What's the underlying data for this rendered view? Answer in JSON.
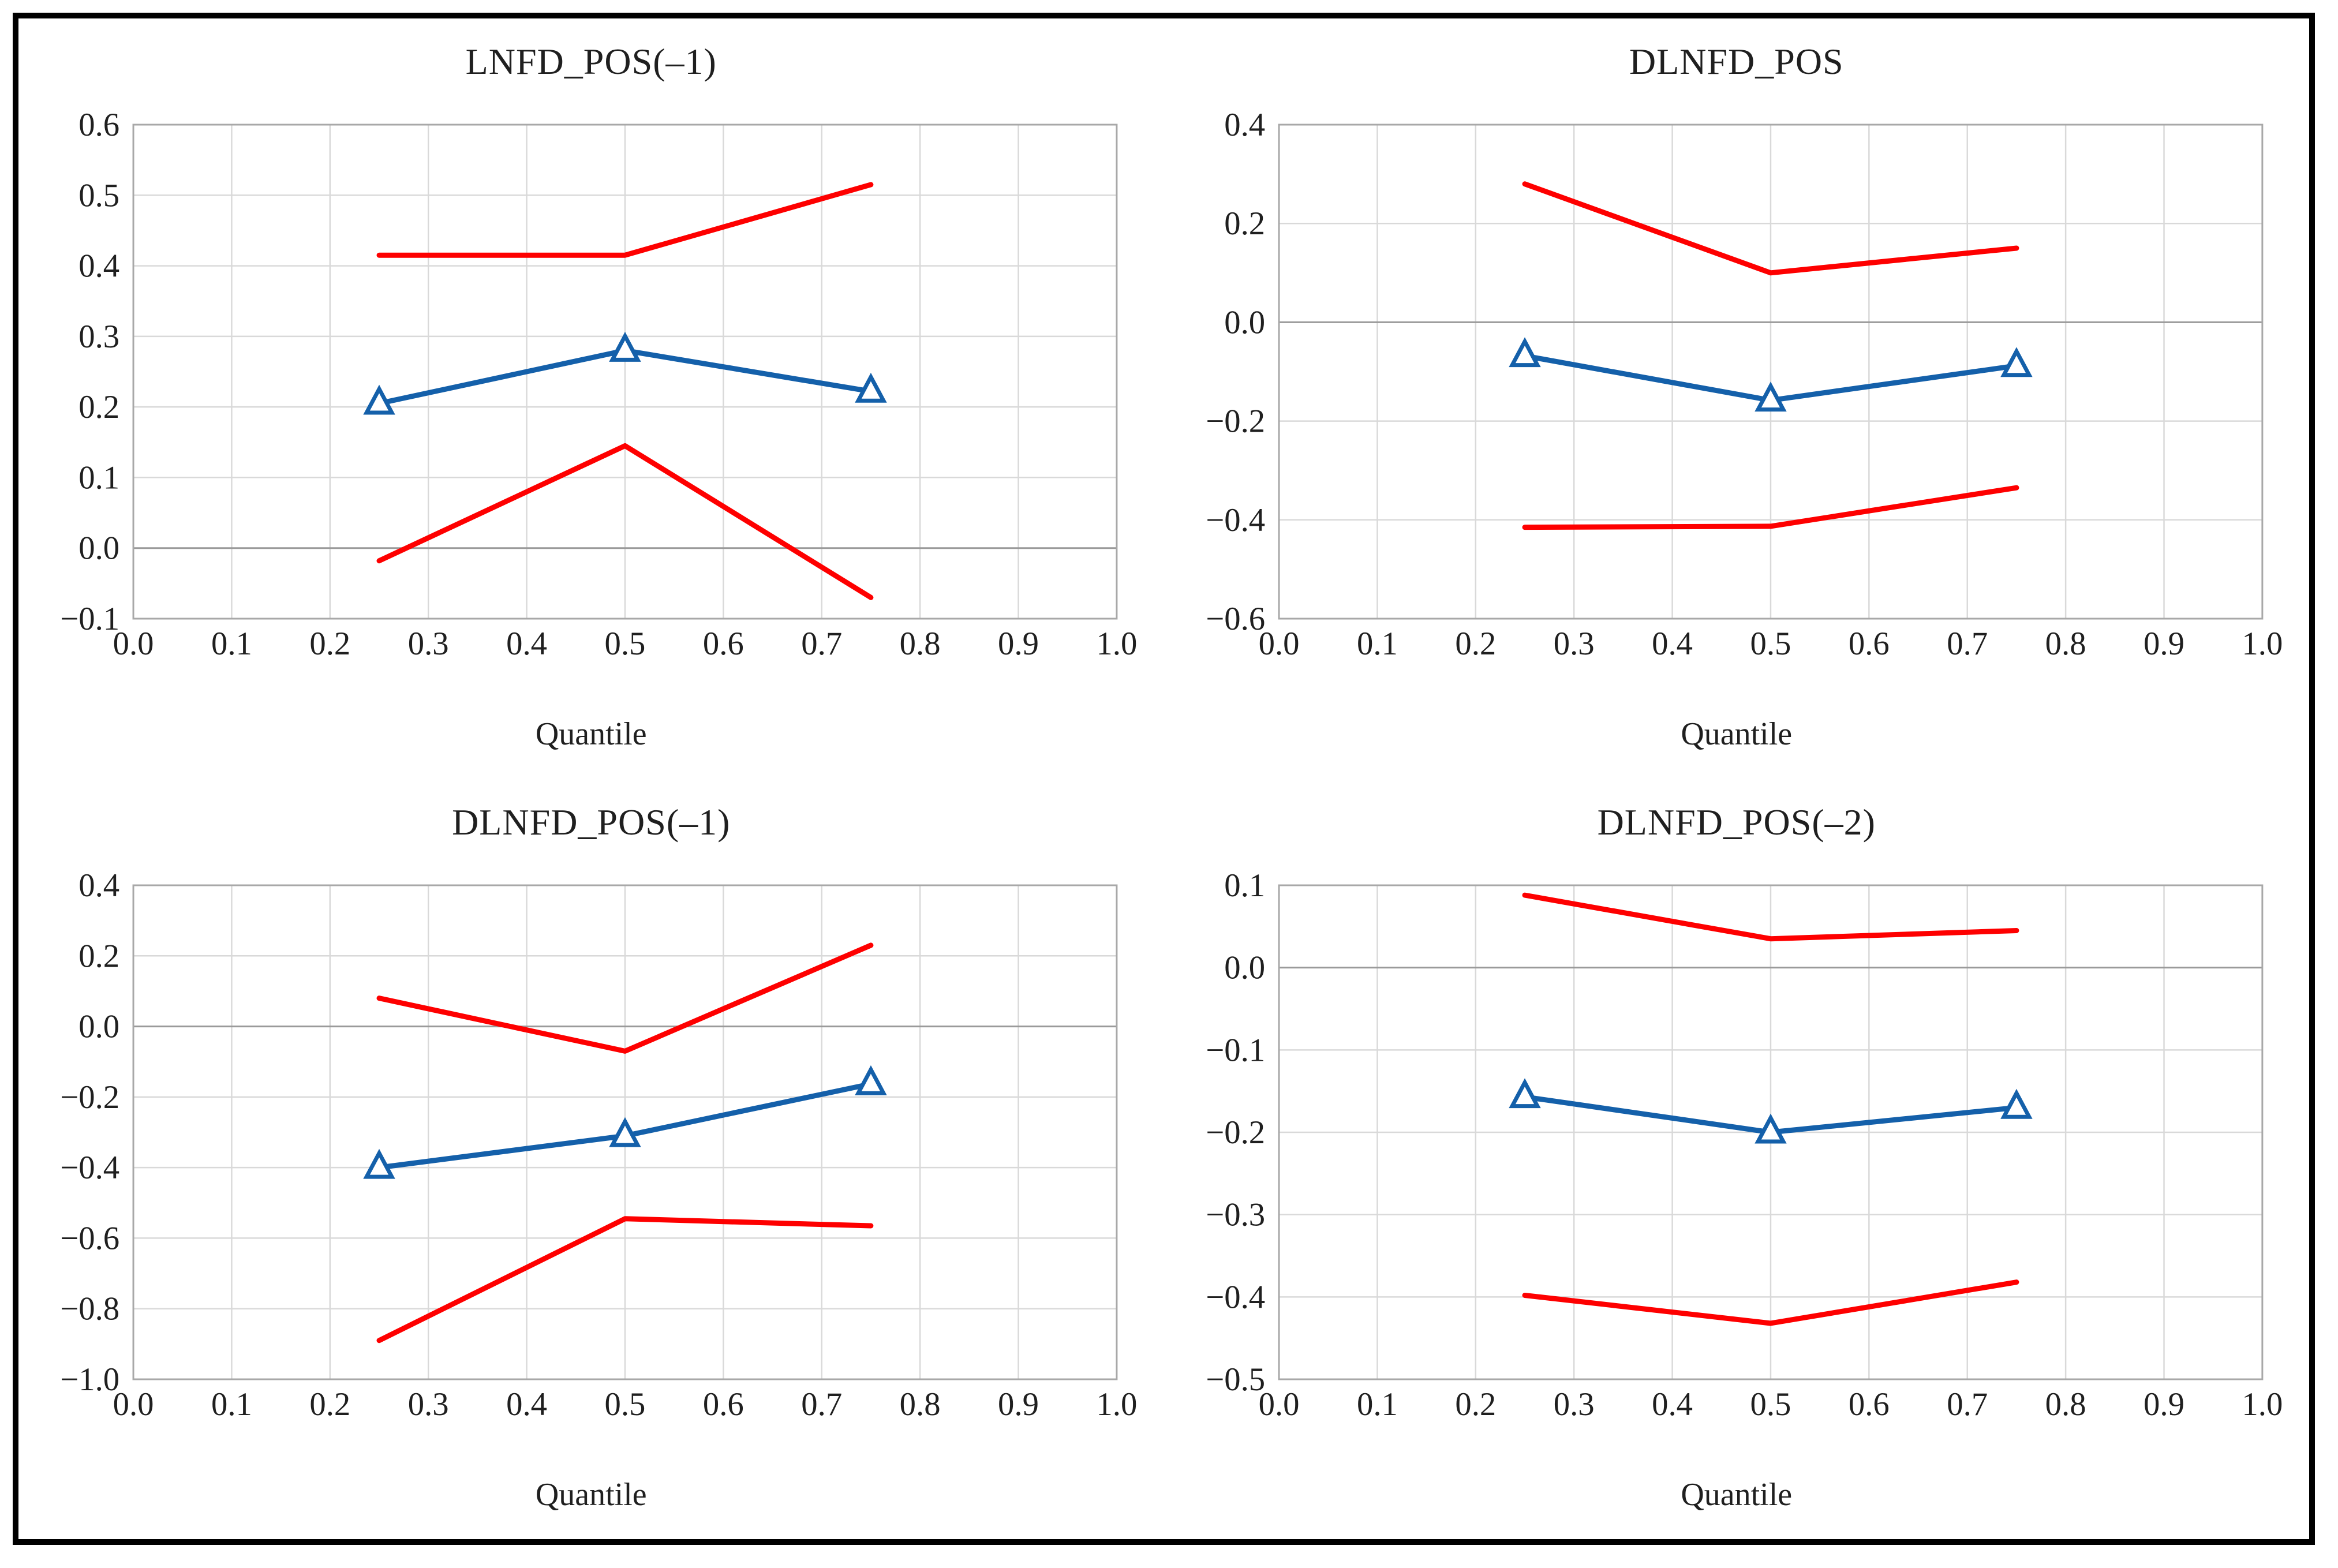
{
  "figure": {
    "background": "#ffffff",
    "border_color": "#000000",
    "grid_color": "#d9d9d9",
    "zero_line_color": "#9a9a9a",
    "frame_color": "#a8a8a8",
    "text_color": "#1f1f1f",
    "estimate_color": "#1460aa",
    "band_color": "#fe0000",
    "marker": "triangle-up-open"
  },
  "chart_data": [
    {
      "type": "line",
      "title": "LNFD_POS(–1)",
      "xlabel": "Quantile",
      "legend": "none",
      "grid": true,
      "zero_line": true,
      "x": [
        0.25,
        0.5,
        0.75
      ],
      "xlim": [
        0.0,
        1.0
      ],
      "ylim": [
        -0.1,
        0.6
      ],
      "xticks": [
        0.0,
        0.1,
        0.2,
        0.3,
        0.4,
        0.5,
        0.6,
        0.7,
        0.8,
        0.9,
        1.0
      ],
      "xtick_labels": [
        "0.0",
        "0.1",
        "0.2",
        "0.3",
        "0.4",
        "0.5",
        "0.6",
        "0.7",
        "0.8",
        "0.9",
        "1.0"
      ],
      "yticks": [
        0.6,
        0.5,
        0.4,
        0.3,
        0.2,
        0.1,
        0.0,
        -0.1
      ],
      "ytick_labels": [
        "0.6",
        "0.5",
        "0.4",
        "0.3",
        "0.2",
        "0.1",
        "0.0",
        "−0.1"
      ],
      "series": [
        {
          "name": "upper-ci",
          "role": "band",
          "values": [
            0.415,
            0.415,
            0.515
          ]
        },
        {
          "name": "lower-ci",
          "role": "band",
          "values": [
            -0.018,
            0.145,
            -0.07
          ]
        },
        {
          "name": "estimate",
          "role": "estimate",
          "values": [
            0.205,
            0.28,
            0.222
          ]
        }
      ]
    },
    {
      "type": "line",
      "title": "DLNFD_POS",
      "xlabel": "Quantile",
      "legend": "none",
      "grid": true,
      "zero_line": true,
      "x": [
        0.25,
        0.5,
        0.75
      ],
      "xlim": [
        0.0,
        1.0
      ],
      "ylim": [
        -0.6,
        0.4
      ],
      "xticks": [
        0.0,
        0.1,
        0.2,
        0.3,
        0.4,
        0.5,
        0.6,
        0.7,
        0.8,
        0.9,
        1.0
      ],
      "xtick_labels": [
        "0.0",
        "0.1",
        "0.2",
        "0.3",
        "0.4",
        "0.5",
        "0.6",
        "0.7",
        "0.8",
        "0.9",
        "1.0"
      ],
      "yticks": [
        0.4,
        0.2,
        0.0,
        -0.2,
        -0.4,
        -0.6
      ],
      "ytick_labels": [
        "0.4",
        "0.2",
        "0.0",
        "−0.2",
        "−0.4",
        "−0.6"
      ],
      "series": [
        {
          "name": "upper-ci",
          "role": "band",
          "values": [
            0.28,
            0.1,
            0.15
          ]
        },
        {
          "name": "lower-ci",
          "role": "band",
          "values": [
            -0.415,
            -0.413,
            -0.335
          ]
        },
        {
          "name": "estimate",
          "role": "estimate",
          "values": [
            -0.068,
            -0.158,
            -0.088
          ]
        }
      ]
    },
    {
      "type": "line",
      "title": "DLNFD_POS(–1)",
      "xlabel": "Quantile",
      "legend": "none",
      "grid": true,
      "zero_line": true,
      "x": [
        0.25,
        0.5,
        0.75
      ],
      "xlim": [
        0.0,
        1.0
      ],
      "ylim": [
        -1.0,
        0.4
      ],
      "xticks": [
        0.0,
        0.1,
        0.2,
        0.3,
        0.4,
        0.5,
        0.6,
        0.7,
        0.8,
        0.9,
        1.0
      ],
      "xtick_labels": [
        "0.0",
        "0.1",
        "0.2",
        "0.3",
        "0.4",
        "0.5",
        "0.6",
        "0.7",
        "0.8",
        "0.9",
        "1.0"
      ],
      "yticks": [
        0.4,
        0.2,
        0.0,
        -0.2,
        -0.4,
        -0.6,
        -0.8,
        -1.0
      ],
      "ytick_labels": [
        "0.4",
        "0.2",
        "0.0",
        "−0.2",
        "−0.4",
        "−0.6",
        "−0.8",
        "−1.0"
      ],
      "series": [
        {
          "name": "upper-ci",
          "role": "band",
          "values": [
            0.08,
            -0.07,
            0.23
          ]
        },
        {
          "name": "lower-ci",
          "role": "band",
          "values": [
            -0.89,
            -0.545,
            -0.565
          ]
        },
        {
          "name": "estimate",
          "role": "estimate",
          "values": [
            -0.4,
            -0.31,
            -0.163
          ]
        }
      ]
    },
    {
      "type": "line",
      "title": "DLNFD_POS(–2)",
      "xlabel": "Quantile",
      "legend": "none",
      "grid": true,
      "zero_line": true,
      "x": [
        0.25,
        0.5,
        0.75
      ],
      "xlim": [
        0.0,
        1.0
      ],
      "ylim": [
        -0.5,
        0.1
      ],
      "xticks": [
        0.0,
        0.1,
        0.2,
        0.3,
        0.4,
        0.5,
        0.6,
        0.7,
        0.8,
        0.9,
        1.0
      ],
      "xtick_labels": [
        "0.0",
        "0.1",
        "0.2",
        "0.3",
        "0.4",
        "0.5",
        "0.6",
        "0.7",
        "0.8",
        "0.9",
        "1.0"
      ],
      "yticks": [
        0.1,
        0.0,
        -0.1,
        -0.2,
        -0.3,
        -0.4,
        -0.5
      ],
      "ytick_labels": [
        "0.1",
        "0.0",
        "−0.1",
        "−0.2",
        "−0.3",
        "−0.4",
        "−0.5"
      ],
      "series": [
        {
          "name": "upper-ci",
          "role": "band",
          "values": [
            0.088,
            0.035,
            0.045
          ]
        },
        {
          "name": "lower-ci",
          "role": "band",
          "values": [
            -0.398,
            -0.432,
            -0.382
          ]
        },
        {
          "name": "estimate",
          "role": "estimate",
          "values": [
            -0.157,
            -0.2,
            -0.17
          ]
        }
      ]
    }
  ]
}
